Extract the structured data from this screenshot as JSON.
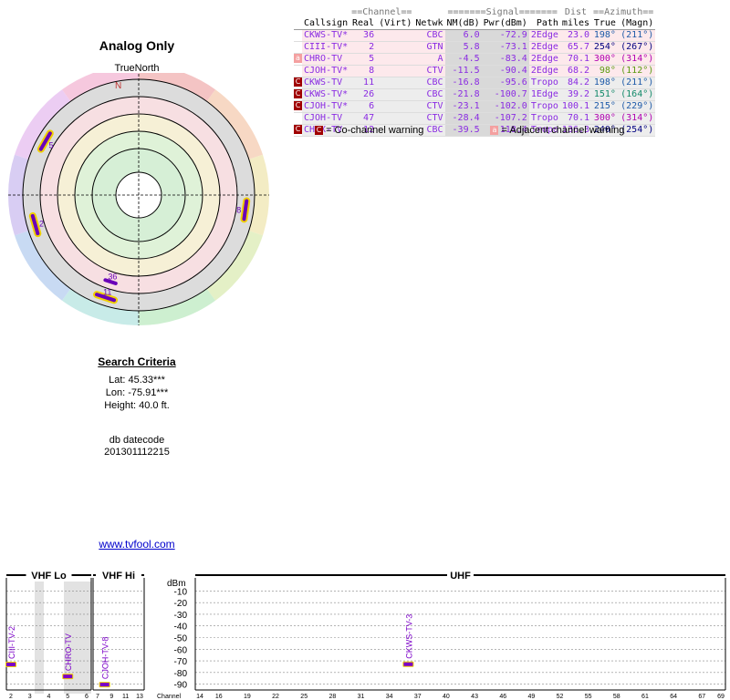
{
  "radar": {
    "title": "Analog Only",
    "north_label": "TrueNorth",
    "compass_n": "N",
    "markers": [
      {
        "label": "5",
        "azimuth_deg": 300,
        "level": 3
      },
      {
        "label": "2",
        "azimuth_deg": 254,
        "level": 3
      },
      {
        "label": "8",
        "azimuth_deg": 98,
        "level": 3
      },
      {
        "label": "36",
        "azimuth_deg": 198,
        "level": 2
      },
      {
        "label": "11",
        "azimuth_deg": 198,
        "level": 3
      }
    ]
  },
  "search": {
    "heading": "Search Criteria",
    "lat": "Lat: 45.33***",
    "lon": "Lon: -75.91***",
    "height": "Height: 40.0 ft.",
    "datecode_label": "db datecode",
    "datecode_value": "201301112215"
  },
  "link": "www.tvfool.com",
  "table": {
    "groups": {
      "channel": "==Channel==",
      "signal": "=======Signal=======",
      "dist": "Dist",
      "azimuth": "==Azimuth=="
    },
    "headers": [
      "Callsign",
      "Real",
      "(Virt)",
      "Netwk",
      "NM(dB)",
      "Pwr(dBm)",
      "Path",
      "miles",
      "True",
      "(Magn)"
    ],
    "rows": [
      {
        "warn": "",
        "callsign": "CKWS-TV*",
        "real": "36",
        "virt": "",
        "netwk": "CBC",
        "nm": "6.0",
        "pwr": "-72.9",
        "path": "2Edge",
        "dist": "23.0",
        "true": "198°",
        "magn": "(211°)",
        "color": "#8a2be2",
        "azcolor": "#1e5aa8",
        "bg": "#fde9ec"
      },
      {
        "warn": "",
        "callsign": "CIII-TV*",
        "real": "2",
        "virt": "",
        "netwk": "GTN",
        "nm": "5.8",
        "pwr": "-73.1",
        "path": "2Edge",
        "dist": "65.7",
        "true": "254°",
        "magn": "(267°)",
        "color": "#8a2be2",
        "azcolor": "#000080",
        "bg": "#fde9ec"
      },
      {
        "warn": "adj",
        "callsign": "CHRO-TV",
        "real": "5",
        "virt": "",
        "netwk": "A",
        "nm": "-4.5",
        "pwr": "-83.4",
        "path": "2Edge",
        "dist": "70.1",
        "true": "300°",
        "magn": "(314°)",
        "color": "#8a2be2",
        "azcolor": "#b000b0",
        "bg": "#fde9ec"
      },
      {
        "warn": "",
        "callsign": "CJOH-TV*",
        "real": "8",
        "virt": "",
        "netwk": "CTV",
        "nm": "-11.5",
        "pwr": "-90.4",
        "path": "2Edge",
        "dist": "68.2",
        "true": "98°",
        "magn": "(112°)",
        "color": "#8a2be2",
        "azcolor": "#5a9a10",
        "bg": "#fde9ec"
      },
      {
        "warn": "co",
        "callsign": "CKWS-TV",
        "real": "11",
        "virt": "",
        "netwk": "CBC",
        "nm": "-16.8",
        "pwr": "-95.6",
        "path": "Tropo",
        "dist": "84.2",
        "true": "198°",
        "magn": "(211°)",
        "color": "#8a2be2",
        "azcolor": "#1e5aa8",
        "bg": "#ededed"
      },
      {
        "warn": "coadj",
        "callsign": "CKWS-TV*",
        "real": "26",
        "virt": "",
        "netwk": "CBC",
        "nm": "-21.8",
        "pwr": "-100.7",
        "path": "1Edge",
        "dist": "39.2",
        "true": "151°",
        "magn": "(164°)",
        "color": "#8a2be2",
        "azcolor": "#138a6a",
        "bg": "#ededed"
      },
      {
        "warn": "coadj",
        "callsign": "CJOH-TV*",
        "real": "6",
        "virt": "",
        "netwk": "CTV",
        "nm": "-23.1",
        "pwr": "-102.0",
        "path": "Tropo",
        "dist": "100.1",
        "true": "215°",
        "magn": "(229°)",
        "color": "#8a2be2",
        "azcolor": "#1e5aa8",
        "bg": "#ededed"
      },
      {
        "warn": "",
        "callsign": "CJOH-TV",
        "real": "47",
        "virt": "",
        "netwk": "CTV",
        "nm": "-28.4",
        "pwr": "-107.2",
        "path": "Tropo",
        "dist": "70.1",
        "true": "300°",
        "magn": "(314°)",
        "color": "#8a2be2",
        "azcolor": "#b000b0",
        "bg": "#ededed"
      },
      {
        "warn": "coadj",
        "callsign": "CHEX-TV",
        "real": "12",
        "virt": "",
        "netwk": "CBC",
        "nm": "-39.5",
        "pwr": "-118.4",
        "path": "Tropo",
        "dist": "136.3",
        "true": "240°",
        "magn": "(254°)",
        "color": "#8a2be2",
        "azcolor": "#000080",
        "bg": "#ededed"
      }
    ]
  },
  "legend": {
    "co_icon": "C",
    "co_text": "= Co-channel warning",
    "adj_icon": "a",
    "adj_text": "= Adjacent channel warning"
  },
  "spectrum": {
    "vhf_lo": "VHF Lo",
    "vhf_hi": "VHF Hi",
    "uhf": "UHF",
    "dbm_label": "dBm",
    "channel_label": "Channel",
    "dbm_ticks": [
      "-10",
      "-20",
      "-30",
      "-40",
      "-50",
      "-60",
      "-70",
      "-80",
      "-90"
    ],
    "vhf_lo_ticks": [
      "2",
      "3",
      "4",
      "5",
      "6"
    ],
    "vhf_hi_ticks": [
      "7",
      "9",
      "11",
      "13"
    ],
    "uhf_ticks": [
      "14",
      "16",
      "19",
      "22",
      "25",
      "28",
      "31",
      "34",
      "37",
      "40",
      "43",
      "46",
      "49",
      "52",
      "55",
      "58",
      "61",
      "64",
      "67",
      "69"
    ],
    "signals": [
      {
        "name": "CIII-TV-2",
        "channel": 2,
        "dbm": -73.1
      },
      {
        "name": "CHRO-TV",
        "channel": 5,
        "dbm": -83.4
      },
      {
        "name": "CJOH-TV-8",
        "channel": 8,
        "dbm": -90.4
      },
      {
        "name": "CKWS-TV-3",
        "channel": 36,
        "dbm": -72.9
      }
    ],
    "signal_color": "#7b00c8"
  }
}
